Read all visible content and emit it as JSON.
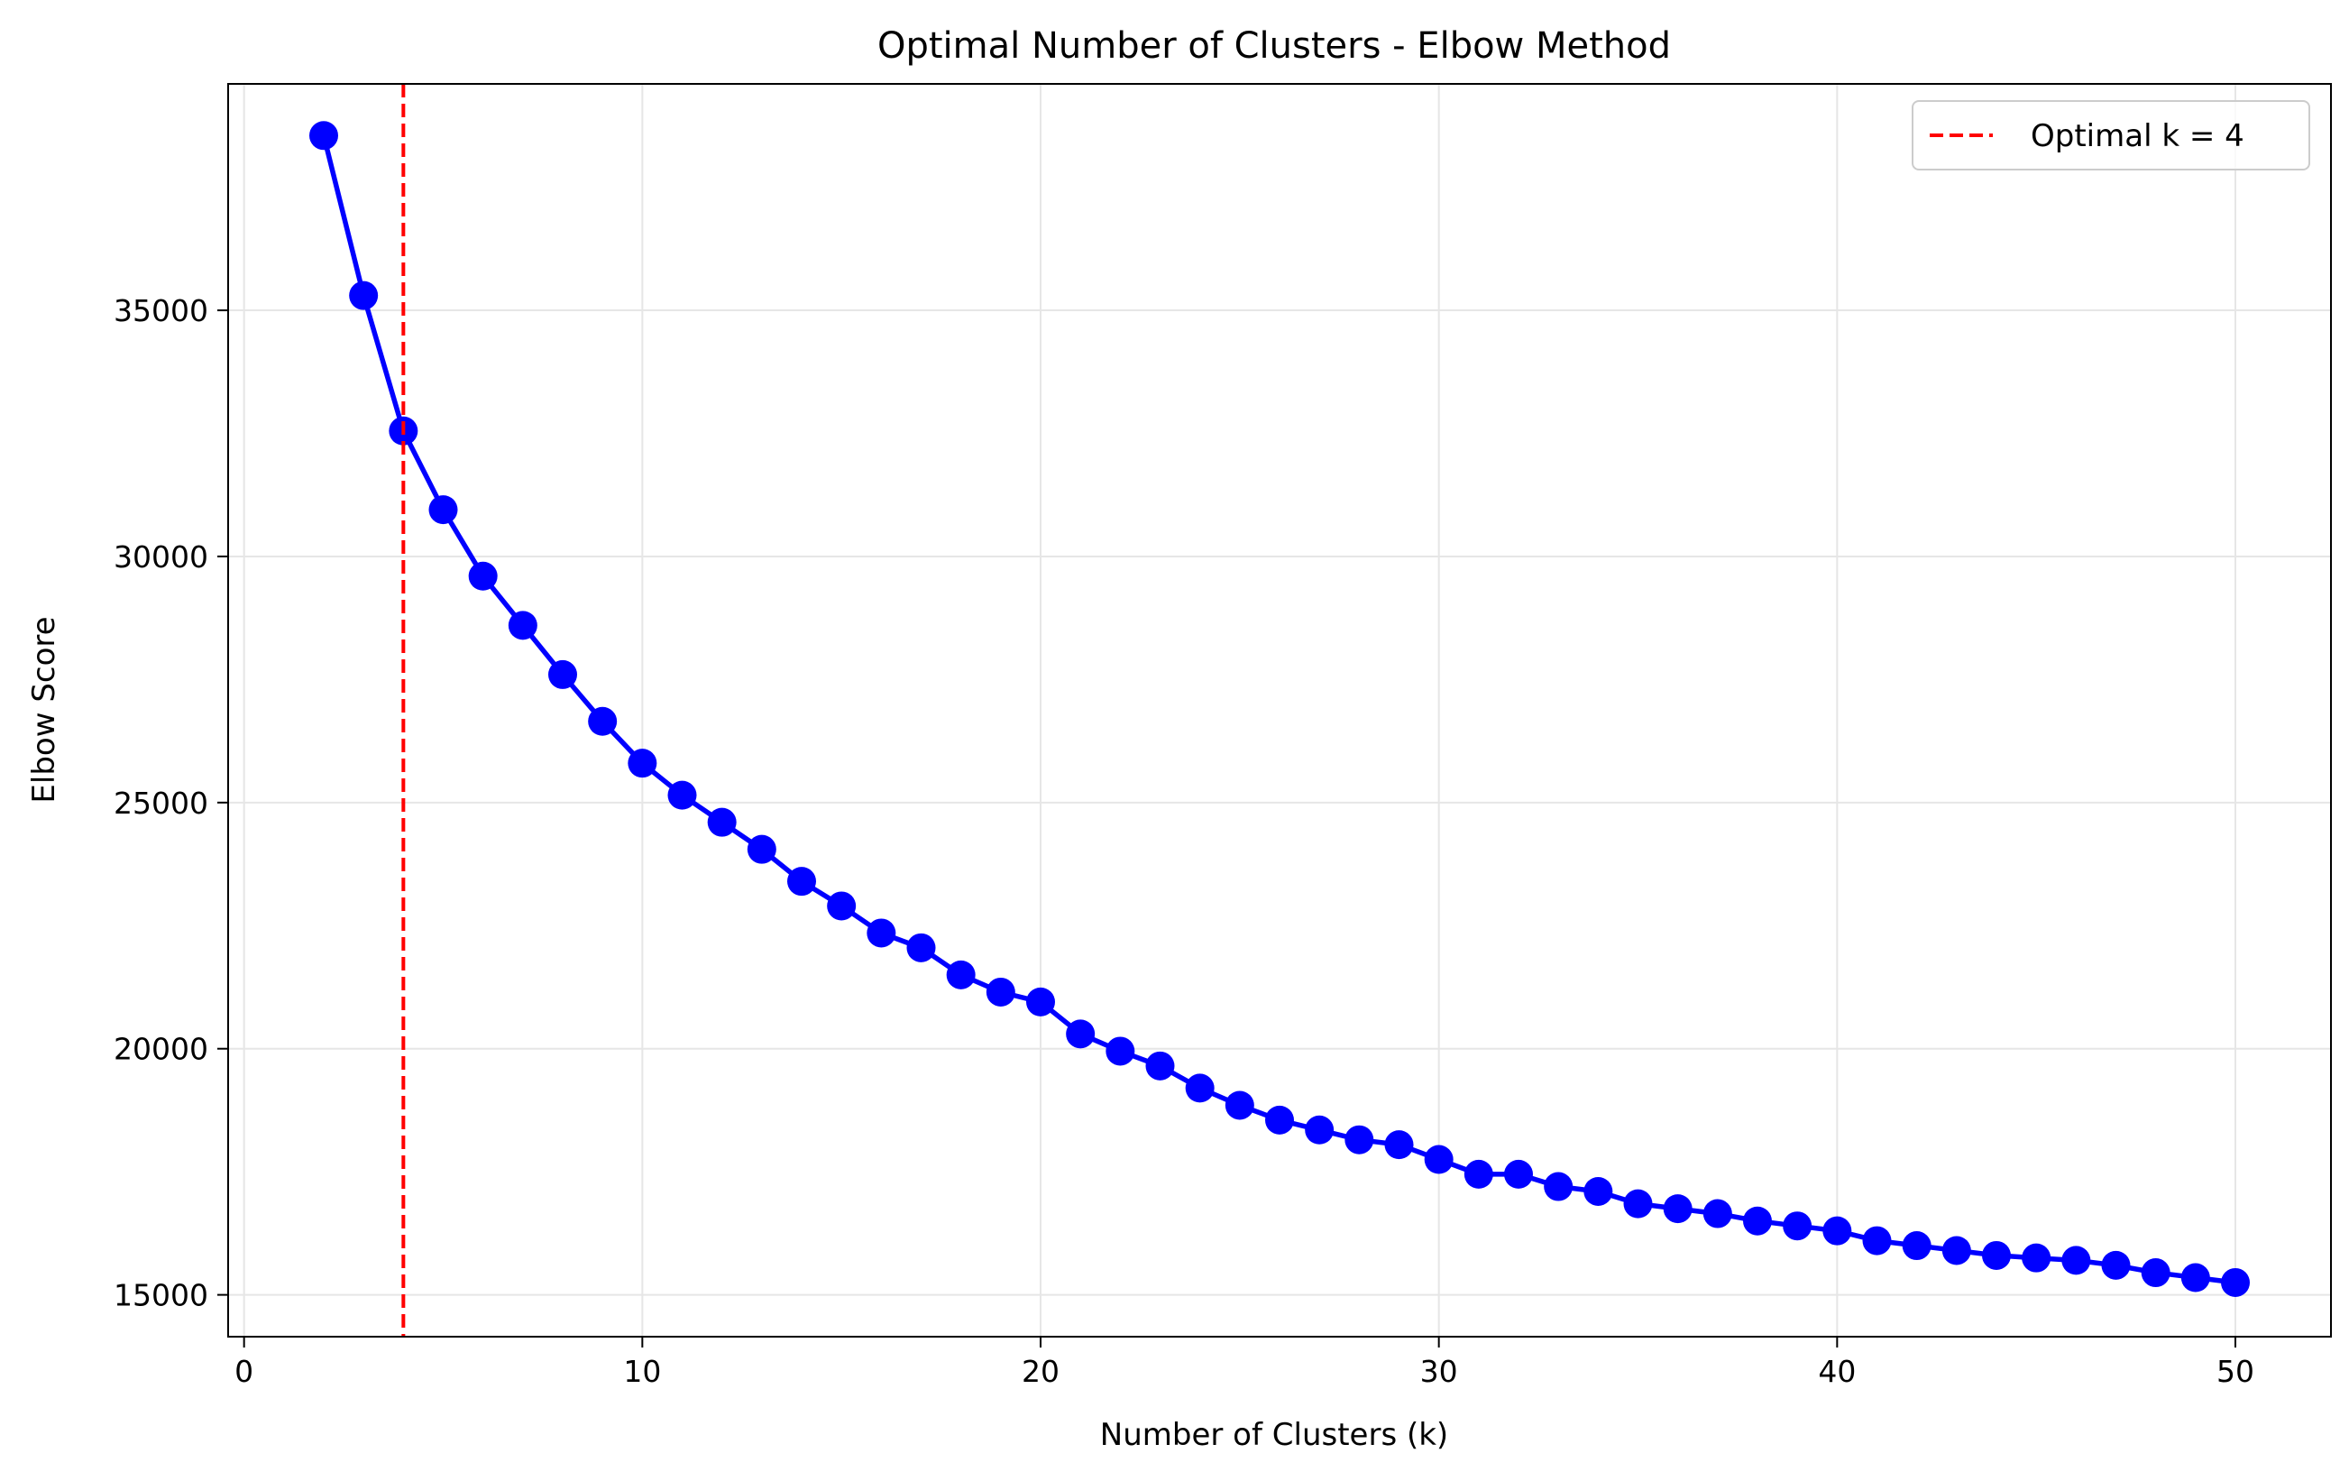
{
  "chart_data": {
    "type": "line",
    "title": "Optimal Number of Clusters - Elbow Method",
    "xlabel": "Number of Clusters (k)",
    "ylabel": "Elbow Score",
    "xlim": [
      -0.4,
      52.4
    ],
    "ylim": [
      14150,
      39600
    ],
    "x_ticks": [
      0,
      10,
      20,
      30,
      40,
      50
    ],
    "y_ticks": [
      15000,
      20000,
      25000,
      30000,
      35000
    ],
    "grid": true,
    "legend": {
      "placement": "top-right",
      "entries": [
        {
          "label": "Optimal k = 4",
          "style": "dashed",
          "color": "#ff0000"
        }
      ]
    },
    "optimal_k": 4,
    "series": [
      {
        "color": "#0000ff",
        "marker": "circle",
        "x": [
          2,
          3,
          4,
          5,
          6,
          7,
          8,
          9,
          10,
          11,
          12,
          13,
          14,
          15,
          16,
          17,
          18,
          19,
          20,
          21,
          22,
          23,
          24,
          25,
          26,
          27,
          28,
          29,
          30,
          31,
          32,
          33,
          34,
          35,
          36,
          37,
          38,
          39,
          40,
          41,
          42,
          43,
          44,
          45,
          46,
          47,
          48,
          49,
          50
        ],
        "values": [
          38550,
          35300,
          32550,
          30950,
          29600,
          28600,
          27600,
          26650,
          25800,
          25150,
          24600,
          24050,
          23400,
          22900,
          22350,
          22050,
          21500,
          21150,
          20950,
          20300,
          19950,
          19650,
          19200,
          18850,
          18550,
          18350,
          18150,
          18050,
          17750,
          17450,
          17450,
          17200,
          17100,
          16850,
          16750,
          16650,
          16500,
          16400,
          16300,
          16100,
          16000,
          15900,
          15800,
          15750,
          15700,
          15600,
          15450,
          15350,
          15250
        ]
      }
    ]
  }
}
